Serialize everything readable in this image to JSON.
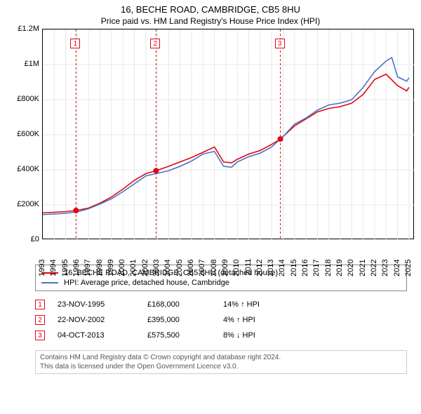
{
  "title_line1": "16, BECHE ROAD, CAMBRIDGE, CB5 8HU",
  "title_line2": "Price paid vs. HM Land Registry's House Price Index (HPI)",
  "chart": {
    "type": "line",
    "background_color": "#ffffff",
    "border_color": "#000000",
    "grid_color": "#e8e8e8",
    "x_years": [
      1993,
      1994,
      1995,
      1996,
      1997,
      1998,
      1999,
      2000,
      2001,
      2002,
      2003,
      2004,
      2005,
      2006,
      2007,
      2008,
      2009,
      2010,
      2011,
      2012,
      2013,
      2014,
      2015,
      2016,
      2017,
      2018,
      2019,
      2020,
      2021,
      2022,
      2023,
      2024,
      2025
    ],
    "x_range": [
      1993,
      2025.5
    ],
    "y_ticks": [
      0,
      200000,
      400000,
      600000,
      800000,
      1000000,
      1200000
    ],
    "y_tick_labels": [
      "£0",
      "£200K",
      "£400K",
      "£600K",
      "£800K",
      "£1M",
      "£1.2M"
    ],
    "y_range": [
      0,
      1200000
    ],
    "series": [
      {
        "name": "price_paid",
        "label": "16, BECHE ROAD, CAMBRIDGE, CB5 8HU (detached house)",
        "color": "#e30613",
        "width": 1.6,
        "points": [
          [
            1993,
            155000
          ],
          [
            1994,
            158000
          ],
          [
            1995,
            162000
          ],
          [
            1995.9,
            168000
          ],
          [
            1997,
            182000
          ],
          [
            1998,
            210000
          ],
          [
            1999,
            245000
          ],
          [
            2000,
            290000
          ],
          [
            2001,
            340000
          ],
          [
            2002,
            378000
          ],
          [
            2002.9,
            395000
          ],
          [
            2004,
            420000
          ],
          [
            2005,
            445000
          ],
          [
            2006,
            470000
          ],
          [
            2007,
            500000
          ],
          [
            2008,
            530000
          ],
          [
            2008.8,
            445000
          ],
          [
            2009.5,
            440000
          ],
          [
            2010,
            460000
          ],
          [
            2011,
            490000
          ],
          [
            2012,
            510000
          ],
          [
            2013,
            545000
          ],
          [
            2013.76,
            575500
          ],
          [
            2014.5,
            620000
          ],
          [
            2015,
            650000
          ],
          [
            2016,
            690000
          ],
          [
            2017,
            730000
          ],
          [
            2018,
            750000
          ],
          [
            2019,
            760000
          ],
          [
            2020,
            780000
          ],
          [
            2021,
            830000
          ],
          [
            2022,
            915000
          ],
          [
            2023,
            945000
          ],
          [
            2024,
            880000
          ],
          [
            2024.8,
            850000
          ],
          [
            2025,
            870000
          ]
        ]
      },
      {
        "name": "hpi",
        "label": "HPI: Average price, detached house, Cambridge",
        "color": "#4a73c4",
        "width": 1.6,
        "points": [
          [
            1993,
            145000
          ],
          [
            1994,
            148000
          ],
          [
            1995,
            152000
          ],
          [
            1996,
            160000
          ],
          [
            1997,
            178000
          ],
          [
            1998,
            205000
          ],
          [
            1999,
            235000
          ],
          [
            2000,
            275000
          ],
          [
            2001,
            320000
          ],
          [
            2002,
            365000
          ],
          [
            2003,
            380000
          ],
          [
            2004,
            395000
          ],
          [
            2005,
            420000
          ],
          [
            2006,
            450000
          ],
          [
            2007,
            490000
          ],
          [
            2008,
            505000
          ],
          [
            2008.8,
            420000
          ],
          [
            2009.5,
            415000
          ],
          [
            2010,
            445000
          ],
          [
            2011,
            475000
          ],
          [
            2012,
            495000
          ],
          [
            2013,
            530000
          ],
          [
            2014,
            590000
          ],
          [
            2015,
            660000
          ],
          [
            2016,
            695000
          ],
          [
            2017,
            740000
          ],
          [
            2018,
            770000
          ],
          [
            2019,
            780000
          ],
          [
            2020,
            800000
          ],
          [
            2021,
            870000
          ],
          [
            2022,
            960000
          ],
          [
            2023,
            1020000
          ],
          [
            2023.5,
            1040000
          ],
          [
            2024,
            930000
          ],
          [
            2024.8,
            905000
          ],
          [
            2025,
            925000
          ]
        ]
      }
    ],
    "sale_markers": [
      {
        "idx": "1",
        "x": 1995.9,
        "y": 168000
      },
      {
        "idx": "2",
        "x": 2002.9,
        "y": 395000
      },
      {
        "idx": "3",
        "x": 2013.76,
        "y": 575500
      }
    ],
    "marker_color": "#e30613",
    "marker_radius": 4
  },
  "legend": {
    "items": [
      {
        "color": "#e30613",
        "label": "16, BECHE ROAD, CAMBRIDGE, CB5 8HU (detached house)"
      },
      {
        "color": "#4a73c4",
        "label": "HPI: Average price, detached house, Cambridge"
      }
    ]
  },
  "sales": [
    {
      "idx": "1",
      "date": "23-NOV-1995",
      "price": "£168,000",
      "diff": "14% ↑ HPI"
    },
    {
      "idx": "2",
      "date": "22-NOV-2002",
      "price": "£395,000",
      "diff": "4% ↑ HPI"
    },
    {
      "idx": "3",
      "date": "04-OCT-2013",
      "price": "£575,500",
      "diff": "8% ↓ HPI"
    }
  ],
  "attribution_line1": "Contains HM Land Registry data © Crown copyright and database right 2024.",
  "attribution_line2": "This data is licensed under the Open Government Licence v3.0.",
  "accent_color": "#e30613"
}
